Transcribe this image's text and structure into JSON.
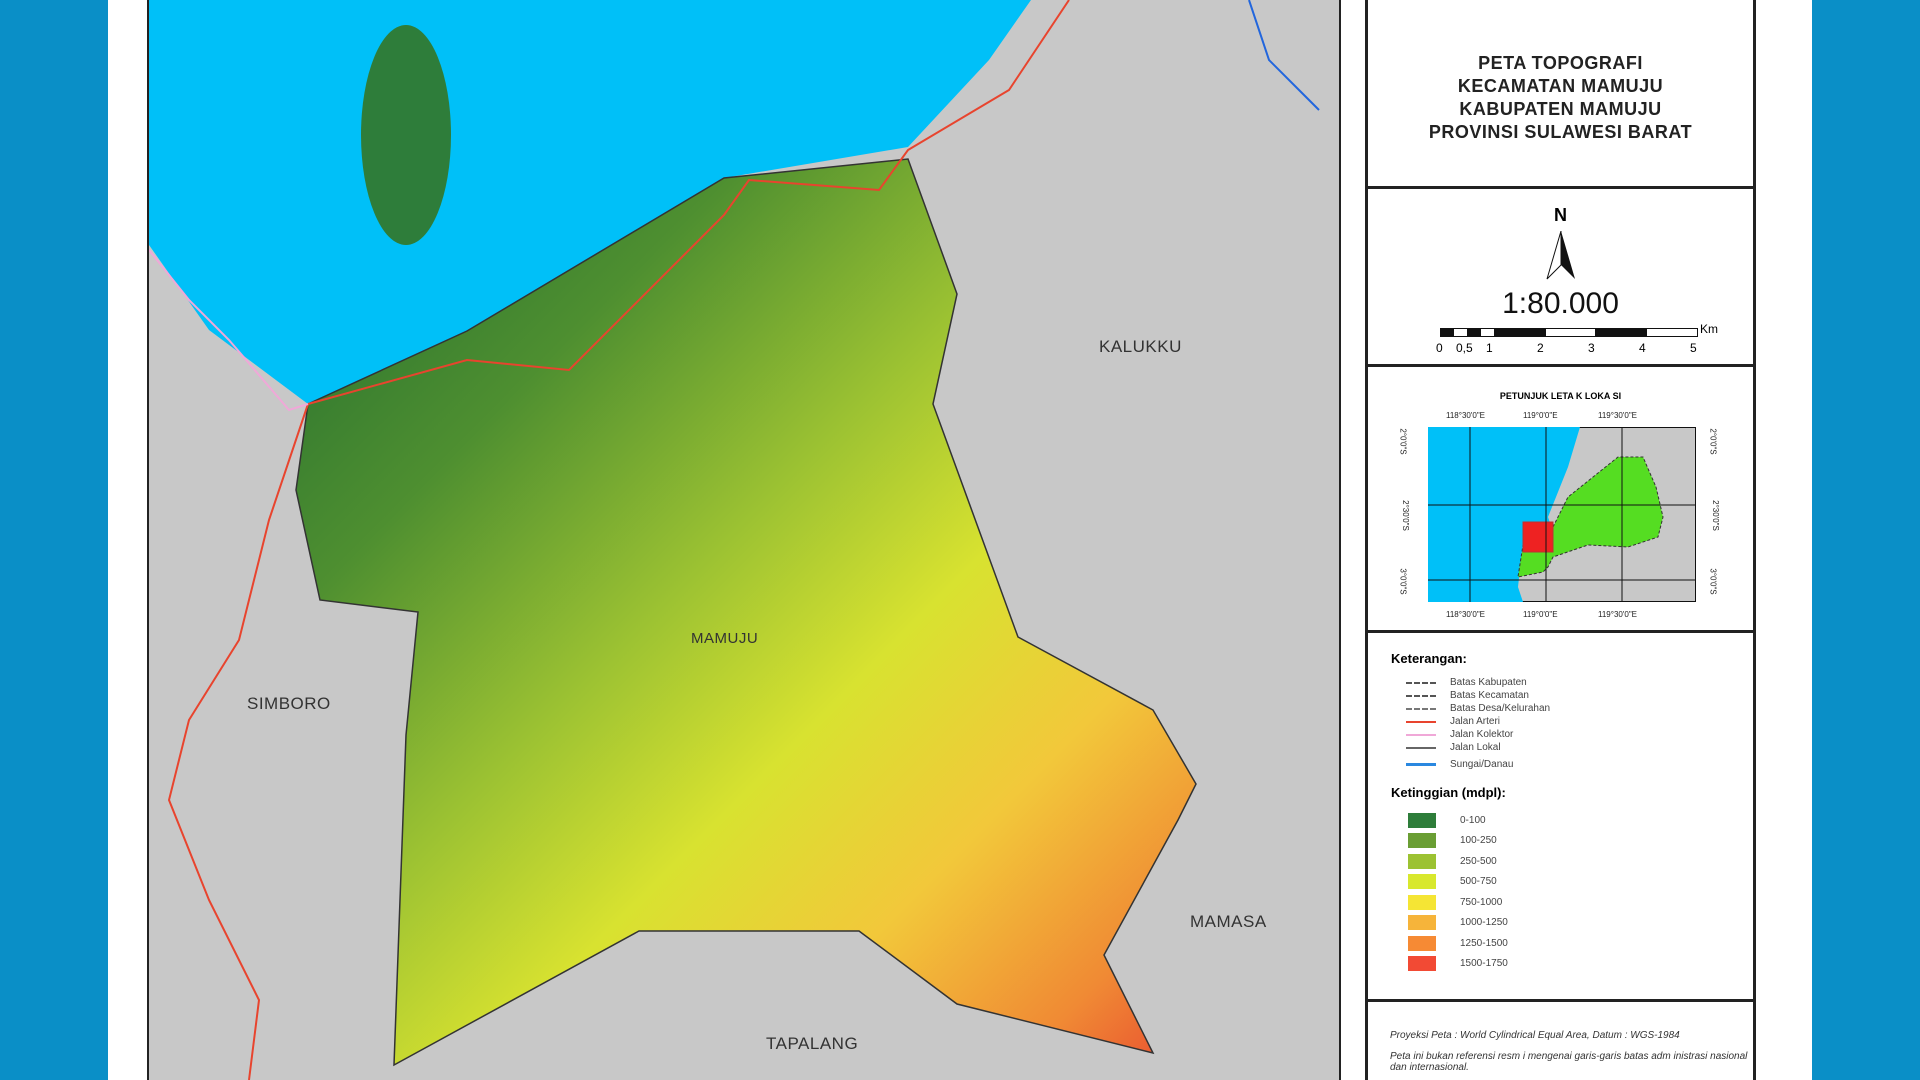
{
  "map": {
    "places": {
      "kalukku": "KALUKKU",
      "simboro": "SIMBORO",
      "mamuju": "MAMUJU",
      "tapalang": "TAPALANG",
      "mamasa": "MAMASA"
    },
    "colors": {
      "sea": "#00c0f8",
      "land": "#c8c8c8",
      "road_arteri": "#e8442e",
      "road_kolektor": "#f0a0d0",
      "river": "#2266dd"
    }
  },
  "title": {
    "lines": [
      "PETA TOPOGRAFI",
      "KECAMATAN MAMUJU",
      "KABUPATEN MAMUJU",
      "PROVINSI SULAWESI BARAT"
    ]
  },
  "scale": {
    "north": "N",
    "ratio": "1:80.000",
    "unit": "Km",
    "ticks": [
      "0",
      "0,5",
      "1",
      "2",
      "3",
      "4",
      "5"
    ]
  },
  "inset": {
    "title": "PETUNJUK LETA K LOKA SI",
    "lon_labels": [
      "118°30'0\"E",
      "119°0'0\"E",
      "119°30'0\"E"
    ],
    "lat_labels": [
      "2°0'0\"S",
      "2°30'0\"S",
      "3°0'0\"S"
    ]
  },
  "legend": {
    "heading": "Keterangan:",
    "lines": [
      {
        "label": "Batas  Kabupaten",
        "style": "dash-dot",
        "color": "#555"
      },
      {
        "label": "Batas  Kecamatan",
        "style": "dashed",
        "color": "#555"
      },
      {
        "label": "Batas  Desa/Kelurahan",
        "style": "dash-dot",
        "color": "#777"
      },
      {
        "label": "Jalan Arteri",
        "style": "solid",
        "color": "#e8442e"
      },
      {
        "label": "Jalan Kolektor",
        "style": "solid",
        "color": "#f0a8d8"
      },
      {
        "label": "Jalan Lokal",
        "style": "solid",
        "color": "#666"
      },
      {
        "label": "Sungai/Danau",
        "style": "river",
        "color": "#2a88e0"
      }
    ],
    "elev_heading": "Ketinggian (mdpl):",
    "classes": [
      {
        "label": "0-100",
        "color": "#2e7d3a"
      },
      {
        "label": "100-250",
        "color": "#6a9e34"
      },
      {
        "label": "250-500",
        "color": "#9cc232"
      },
      {
        "label": "500-750",
        "color": "#d8e82e"
      },
      {
        "label": "750-1000",
        "color": "#f5e534"
      },
      {
        "label": "1000-1250",
        "color": "#f6b43a"
      },
      {
        "label": "1250-1500",
        "color": "#f68a34"
      },
      {
        "label": "1500-1750",
        "color": "#f24a34"
      }
    ]
  },
  "notes": {
    "projection": "Proyeksi Peta : World Cylindrical Equal Area, Datum  : WGS-1984",
    "disclaimer": "Peta ini bukan referensi resm i mengenai garis-garis batas adm inistrasi nasional dan internasional."
  }
}
